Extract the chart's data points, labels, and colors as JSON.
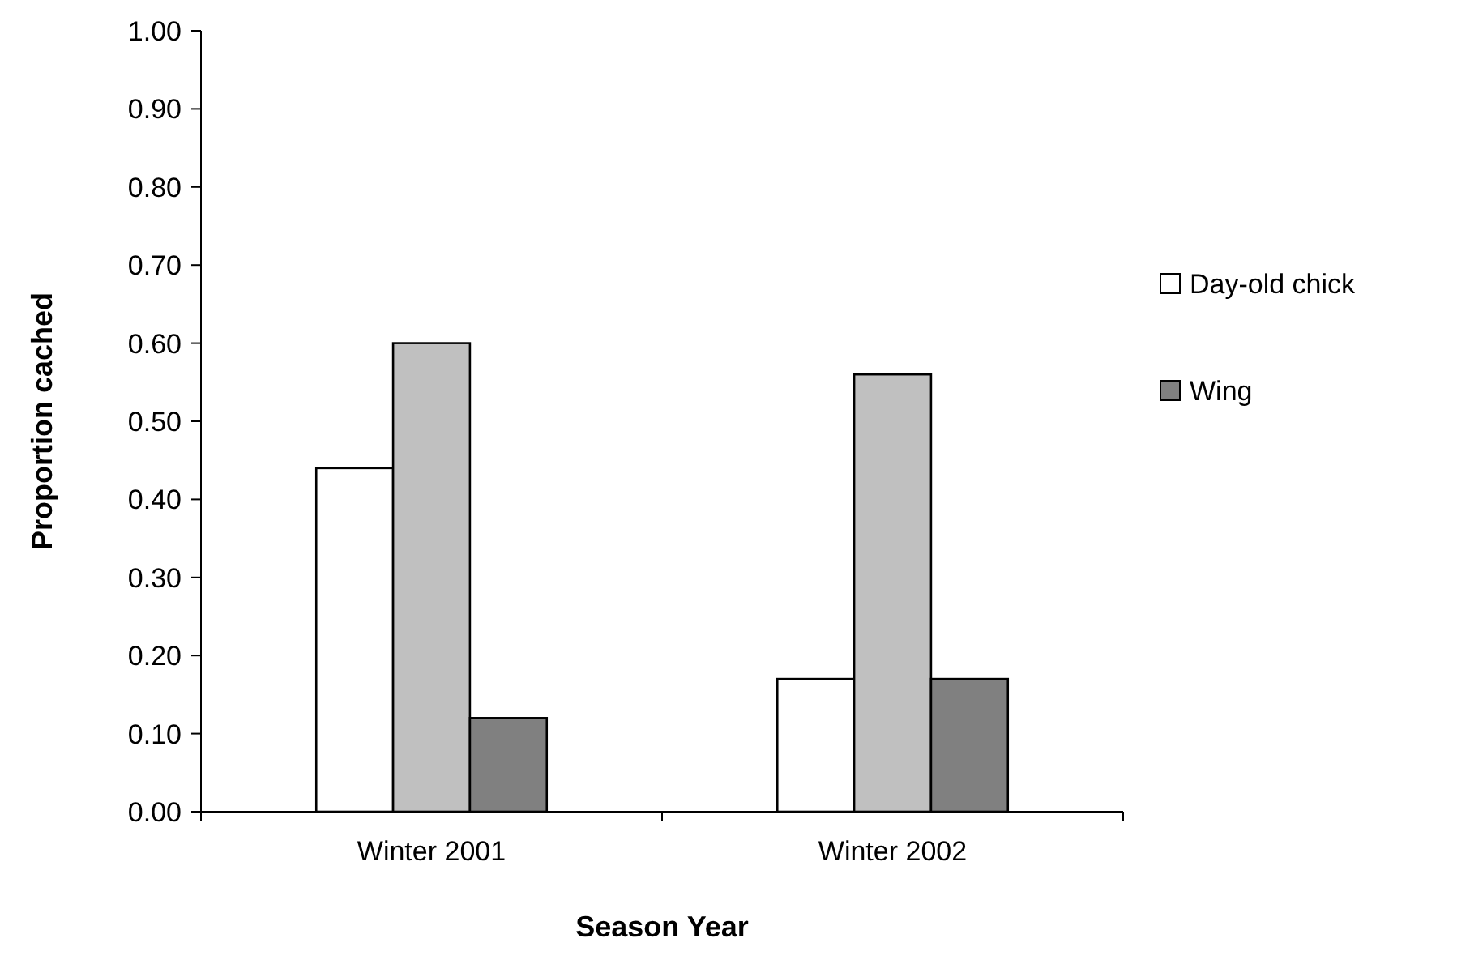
{
  "chart_data": {
    "type": "bar",
    "xlabel": "Season Year",
    "ylabel": "Proportion cached",
    "categories": [
      "Winter 2001",
      "Winter 2002"
    ],
    "series": [
      {
        "name": "Day-old chick",
        "color": "#ffffff",
        "values": [
          0.44,
          0.17
        ]
      },
      {
        "color": "#c0c0c0",
        "values": [
          0.6,
          0.56
        ]
      },
      {
        "name": "Wing",
        "color": "#808080",
        "values": [
          0.12,
          0.17
        ]
      }
    ],
    "ylim": [
      0,
      1
    ],
    "yticks": [
      {
        "value": 0,
        "label": "0.00"
      },
      {
        "value": 0.1,
        "label": "0.10"
      },
      {
        "value": 0.2,
        "label": "0.20"
      },
      {
        "value": 0.3,
        "label": "0.30"
      },
      {
        "value": 0.4,
        "label": "0.40"
      },
      {
        "value": 0.5,
        "label": "0.50"
      },
      {
        "value": 0.6,
        "label": "0.60"
      },
      {
        "value": 0.7,
        "label": "0.70"
      },
      {
        "value": 0.8,
        "label": "0.80"
      },
      {
        "value": 0.9,
        "label": "0.90"
      },
      {
        "value": 1,
        "label": "1.00"
      }
    ],
    "grid": false,
    "legend": "right"
  }
}
